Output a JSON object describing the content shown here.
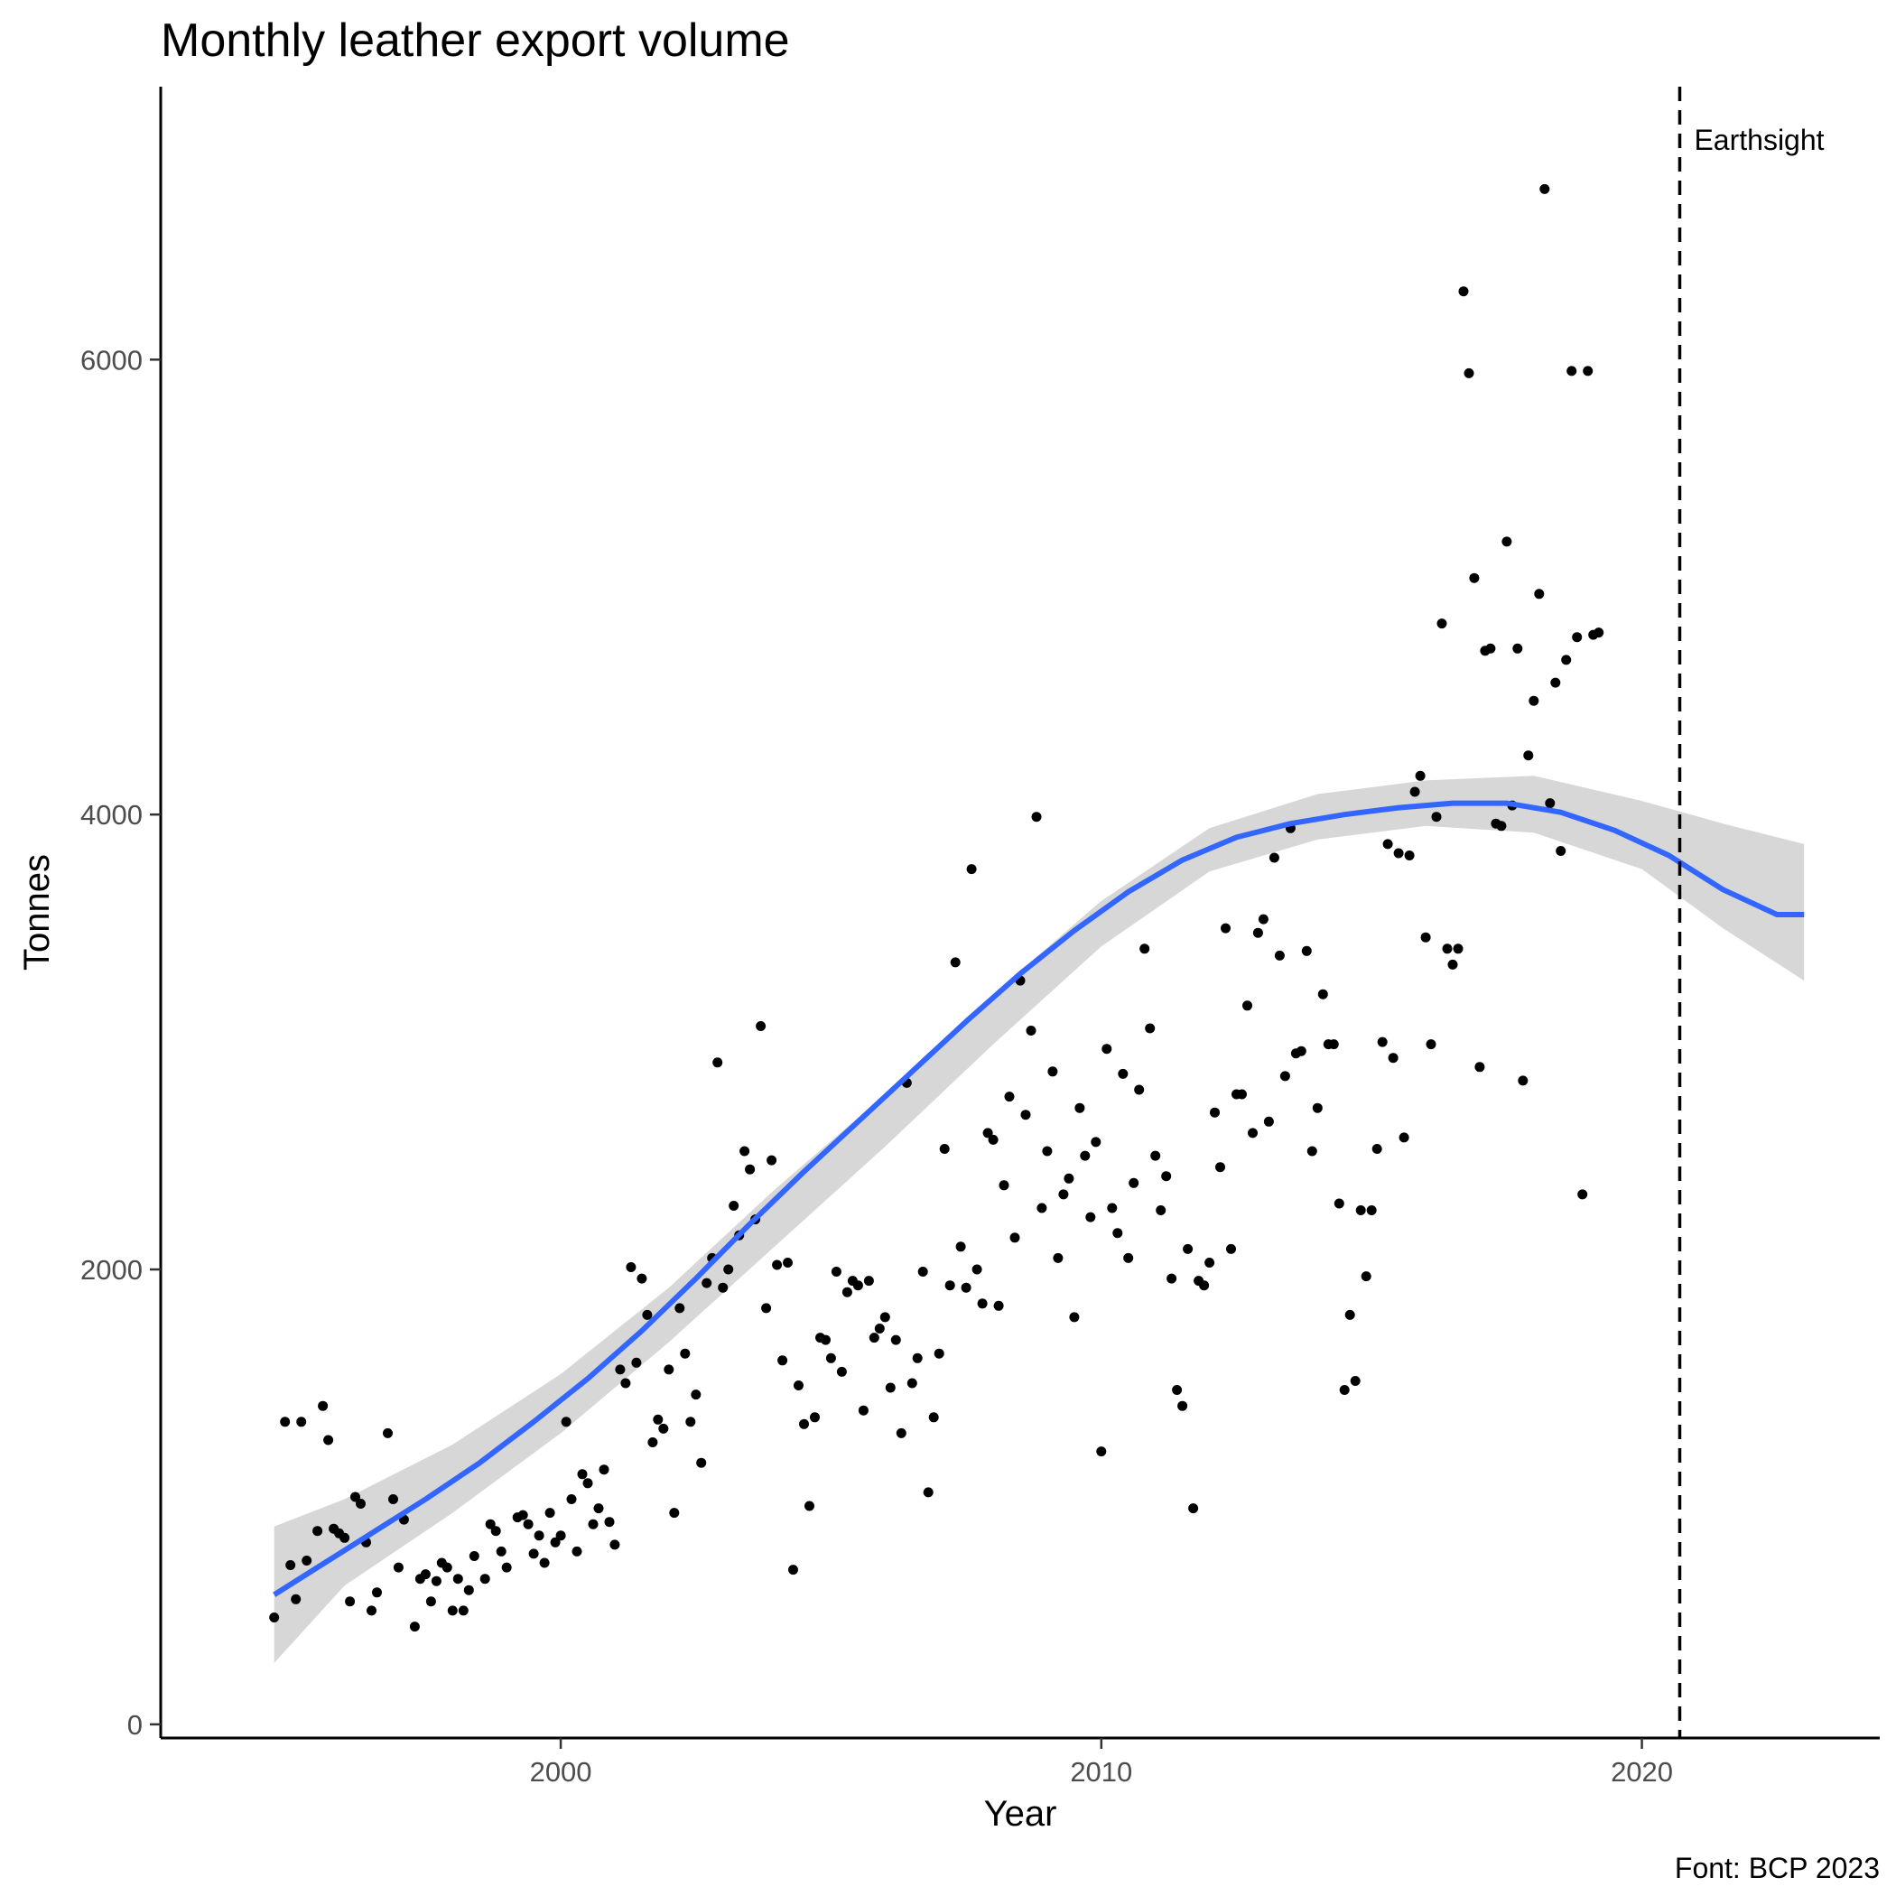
{
  "chart_data": {
    "type": "scatter",
    "title": "Monthly leather export volume",
    "xlabel": "Year",
    "ylabel": "Tonnes",
    "caption": "Font: BCP 2023",
    "xlim": [
      1992.6,
      2024.4
    ],
    "ylim": [
      -60,
      7200
    ],
    "x_ticks": [
      2000,
      2010,
      2020
    ],
    "y_ticks": [
      0,
      2000,
      4000,
      6000
    ],
    "grid": false,
    "legend": "none",
    "annotation": {
      "x": 2020.7,
      "label": "Earthsight",
      "style": "dashed vertical line"
    },
    "colors": {
      "points": "#000000",
      "smooth_line": "#3366ff",
      "ci_band": "#d3d3d3"
    },
    "points": [
      [
        1994.7,
        470
      ],
      [
        1994.9,
        1330
      ],
      [
        1995.0,
        700
      ],
      [
        1995.1,
        550
      ],
      [
        1995.2,
        1330
      ],
      [
        1995.3,
        720
      ],
      [
        1995.5,
        850
      ],
      [
        1995.6,
        1400
      ],
      [
        1995.7,
        1250
      ],
      [
        1995.8,
        860
      ],
      [
        1995.9,
        840
      ],
      [
        1996.0,
        820
      ],
      [
        1996.1,
        540
      ],
      [
        1996.2,
        1000
      ],
      [
        1996.3,
        970
      ],
      [
        1996.4,
        800
      ],
      [
        1996.5,
        500
      ],
      [
        1996.6,
        580
      ],
      [
        1996.8,
        1280
      ],
      [
        1996.9,
        990
      ],
      [
        1997.0,
        690
      ],
      [
        1997.1,
        900
      ],
      [
        1997.3,
        430
      ],
      [
        1997.4,
        640
      ],
      [
        1997.5,
        660
      ],
      [
        1997.6,
        540
      ],
      [
        1997.7,
        630
      ],
      [
        1997.8,
        710
      ],
      [
        1997.9,
        690
      ],
      [
        1998.0,
        500
      ],
      [
        1998.1,
        640
      ],
      [
        1998.2,
        500
      ],
      [
        1998.3,
        590
      ],
      [
        1998.4,
        740
      ],
      [
        1998.6,
        640
      ],
      [
        1998.7,
        880
      ],
      [
        1998.8,
        850
      ],
      [
        1998.9,
        760
      ],
      [
        1999.0,
        690
      ],
      [
        1999.2,
        910
      ],
      [
        1999.3,
        920
      ],
      [
        1999.4,
        880
      ],
      [
        1999.5,
        750
      ],
      [
        1999.6,
        830
      ],
      [
        1999.7,
        710
      ],
      [
        1999.8,
        930
      ],
      [
        1999.9,
        800
      ],
      [
        2000.0,
        830
      ],
      [
        2000.1,
        1330
      ],
      [
        2000.2,
        990
      ],
      [
        2000.3,
        760
      ],
      [
        2000.4,
        1100
      ],
      [
        2000.5,
        1060
      ],
      [
        2000.6,
        880
      ],
      [
        2000.7,
        950
      ],
      [
        2000.8,
        1120
      ],
      [
        2000.9,
        890
      ],
      [
        2001.0,
        790
      ],
      [
        2001.1,
        1560
      ],
      [
        2001.2,
        1500
      ],
      [
        2001.3,
        2010
      ],
      [
        2001.4,
        1590
      ],
      [
        2001.5,
        1960
      ],
      [
        2001.6,
        1800
      ],
      [
        2001.7,
        1240
      ],
      [
        2001.8,
        1340
      ],
      [
        2001.9,
        1300
      ],
      [
        2002.0,
        1560
      ],
      [
        2002.1,
        930
      ],
      [
        2002.2,
        1830
      ],
      [
        2002.3,
        1630
      ],
      [
        2002.4,
        1330
      ],
      [
        2002.5,
        1450
      ],
      [
        2002.6,
        1150
      ],
      [
        2002.7,
        1940
      ],
      [
        2002.8,
        2050
      ],
      [
        2002.9,
        2910
      ],
      [
        2003.0,
        1920
      ],
      [
        2003.1,
        2000
      ],
      [
        2003.2,
        2280
      ],
      [
        2003.3,
        2150
      ],
      [
        2003.4,
        2520
      ],
      [
        2003.5,
        2440
      ],
      [
        2003.6,
        2220
      ],
      [
        2003.7,
        3070
      ],
      [
        2003.8,
        1830
      ],
      [
        2003.9,
        2480
      ],
      [
        2004.0,
        2020
      ],
      [
        2004.1,
        1600
      ],
      [
        2004.2,
        2030
      ],
      [
        2004.3,
        680
      ],
      [
        2004.4,
        1490
      ],
      [
        2004.5,
        1320
      ],
      [
        2004.6,
        960
      ],
      [
        2004.7,
        1350
      ],
      [
        2004.8,
        1700
      ],
      [
        2004.9,
        1690
      ],
      [
        2005.0,
        1610
      ],
      [
        2005.1,
        1990
      ],
      [
        2005.2,
        1550
      ],
      [
        2005.3,
        1900
      ],
      [
        2005.4,
        1950
      ],
      [
        2005.5,
        1930
      ],
      [
        2005.6,
        1380
      ],
      [
        2005.7,
        1950
      ],
      [
        2005.8,
        1700
      ],
      [
        2005.9,
        1740
      ],
      [
        2006.0,
        1790
      ],
      [
        2006.1,
        1480
      ],
      [
        2006.2,
        1690
      ],
      [
        2006.3,
        1280
      ],
      [
        2006.4,
        2820
      ],
      [
        2006.5,
        1500
      ],
      [
        2006.6,
        1610
      ],
      [
        2006.7,
        1990
      ],
      [
        2006.8,
        1020
      ],
      [
        2006.9,
        1350
      ],
      [
        2007.0,
        1630
      ],
      [
        2007.1,
        2530
      ],
      [
        2007.2,
        1930
      ],
      [
        2007.3,
        3350
      ],
      [
        2007.4,
        2100
      ],
      [
        2007.5,
        1920
      ],
      [
        2007.6,
        3760
      ],
      [
        2007.7,
        2000
      ],
      [
        2007.8,
        1850
      ],
      [
        2007.9,
        2600
      ],
      [
        2008.0,
        2570
      ],
      [
        2008.1,
        1840
      ],
      [
        2008.2,
        2370
      ],
      [
        2008.3,
        2760
      ],
      [
        2008.4,
        2140
      ],
      [
        2008.5,
        3270
      ],
      [
        2008.6,
        2680
      ],
      [
        2008.7,
        3050
      ],
      [
        2008.8,
        3990
      ],
      [
        2008.9,
        2270
      ],
      [
        2009.0,
        2520
      ],
      [
        2009.1,
        2870
      ],
      [
        2009.2,
        2050
      ],
      [
        2009.3,
        2330
      ],
      [
        2009.4,
        2400
      ],
      [
        2009.5,
        1790
      ],
      [
        2009.6,
        2710
      ],
      [
        2009.7,
        2500
      ],
      [
        2009.8,
        2230
      ],
      [
        2009.9,
        2560
      ],
      [
        2010.0,
        1200
      ],
      [
        2010.1,
        2970
      ],
      [
        2010.2,
        2270
      ],
      [
        2010.3,
        2160
      ],
      [
        2010.4,
        2860
      ],
      [
        2010.5,
        2050
      ],
      [
        2010.6,
        2380
      ],
      [
        2010.7,
        2790
      ],
      [
        2010.8,
        3410
      ],
      [
        2010.9,
        3060
      ],
      [
        2011.0,
        2500
      ],
      [
        2011.1,
        2260
      ],
      [
        2011.2,
        2410
      ],
      [
        2011.3,
        1960
      ],
      [
        2011.4,
        1470
      ],
      [
        2011.5,
        1400
      ],
      [
        2011.6,
        2090
      ],
      [
        2011.7,
        950
      ],
      [
        2011.8,
        1950
      ],
      [
        2011.9,
        1930
      ],
      [
        2012.0,
        2030
      ],
      [
        2012.1,
        2690
      ],
      [
        2012.2,
        2450
      ],
      [
        2012.3,
        3500
      ],
      [
        2012.4,
        2090
      ],
      [
        2012.5,
        2770
      ],
      [
        2012.6,
        2770
      ],
      [
        2012.7,
        3160
      ],
      [
        2012.8,
        2600
      ],
      [
        2012.9,
        3480
      ],
      [
        2013.0,
        3540
      ],
      [
        2013.1,
        2650
      ],
      [
        2013.2,
        3810
      ],
      [
        2013.3,
        3380
      ],
      [
        2013.4,
        2850
      ],
      [
        2013.5,
        3940
      ],
      [
        2013.6,
        2950
      ],
      [
        2013.7,
        2960
      ],
      [
        2013.8,
        3400
      ],
      [
        2013.9,
        2520
      ],
      [
        2014.0,
        2710
      ],
      [
        2014.1,
        3210
      ],
      [
        2014.2,
        2990
      ],
      [
        2014.3,
        2990
      ],
      [
        2014.4,
        2290
      ],
      [
        2014.5,
        1470
      ],
      [
        2014.6,
        1800
      ],
      [
        2014.7,
        1510
      ],
      [
        2014.8,
        2260
      ],
      [
        2014.9,
        1970
      ],
      [
        2015.0,
        2260
      ],
      [
        2015.1,
        2530
      ],
      [
        2015.2,
        3000
      ],
      [
        2015.3,
        3870
      ],
      [
        2015.4,
        2930
      ],
      [
        2015.5,
        3830
      ],
      [
        2015.6,
        2580
      ],
      [
        2015.7,
        3820
      ],
      [
        2015.8,
        4100
      ],
      [
        2015.9,
        4170
      ],
      [
        2016.0,
        3460
      ],
      [
        2016.1,
        2990
      ],
      [
        2016.2,
        3990
      ],
      [
        2016.3,
        4840
      ],
      [
        2016.4,
        3410
      ],
      [
        2016.5,
        3340
      ],
      [
        2016.6,
        3410
      ],
      [
        2016.7,
        6300
      ],
      [
        2016.8,
        5940
      ],
      [
        2016.9,
        5040
      ],
      [
        2017.0,
        2890
      ],
      [
        2017.1,
        4720
      ],
      [
        2017.2,
        4730
      ],
      [
        2017.3,
        3960
      ],
      [
        2017.4,
        3950
      ],
      [
        2017.5,
        5200
      ],
      [
        2017.6,
        4040
      ],
      [
        2017.7,
        4730
      ],
      [
        2017.8,
        2830
      ],
      [
        2017.9,
        4260
      ],
      [
        2018.0,
        4500
      ],
      [
        2018.1,
        4970
      ],
      [
        2018.2,
        6750
      ],
      [
        2018.3,
        4050
      ],
      [
        2018.4,
        4580
      ],
      [
        2018.5,
        3840
      ],
      [
        2018.6,
        4680
      ],
      [
        2018.7,
        5950
      ],
      [
        2018.8,
        4780
      ],
      [
        2018.9,
        2330
      ],
      [
        2019.0,
        5950
      ],
      [
        2019.1,
        4790
      ],
      [
        2019.2,
        4800
      ]
    ],
    "smooth_line": [
      [
        1994.7,
        570
      ],
      [
        1995.5,
        690
      ],
      [
        1996.5,
        840
      ],
      [
        1997.5,
        990
      ],
      [
        1998.5,
        1150
      ],
      [
        1999.5,
        1330
      ],
      [
        2000.5,
        1520
      ],
      [
        2001.5,
        1730
      ],
      [
        2002.5,
        1960
      ],
      [
        2003.5,
        2200
      ],
      [
        2004.5,
        2430
      ],
      [
        2005.5,
        2650
      ],
      [
        2006.5,
        2870
      ],
      [
        2007.5,
        3090
      ],
      [
        2008.5,
        3300
      ],
      [
        2009.5,
        3490
      ],
      [
        2010.5,
        3660
      ],
      [
        2011.5,
        3800
      ],
      [
        2012.5,
        3900
      ],
      [
        2013.5,
        3960
      ],
      [
        2014.5,
        4000
      ],
      [
        2015.5,
        4030
      ],
      [
        2016.5,
        4050
      ],
      [
        2017.5,
        4050
      ],
      [
        2018.5,
        4010
      ],
      [
        2019.5,
        3930
      ],
      [
        2020.5,
        3820
      ],
      [
        2021.5,
        3670
      ],
      [
        2022.5,
        3560
      ],
      [
        2023.0,
        3560
      ]
    ],
    "ci_band": [
      [
        1994.7,
        270,
        870
      ],
      [
        1996.0,
        610,
        990
      ],
      [
        1998.0,
        930,
        1230
      ],
      [
        2000.0,
        1280,
        1540
      ],
      [
        2002.0,
        1680,
        1920
      ],
      [
        2004.0,
        2110,
        2360
      ],
      [
        2006.0,
        2540,
        2770
      ],
      [
        2008.0,
        2990,
        3210
      ],
      [
        2010.0,
        3420,
        3620
      ],
      [
        2012.0,
        3750,
        3940
      ],
      [
        2014.0,
        3890,
        4090
      ],
      [
        2016.0,
        3950,
        4150
      ],
      [
        2018.0,
        3920,
        4170
      ],
      [
        2020.0,
        3760,
        4060
      ],
      [
        2021.5,
        3500,
        3960
      ],
      [
        2023.0,
        3270,
        3870
      ]
    ]
  }
}
